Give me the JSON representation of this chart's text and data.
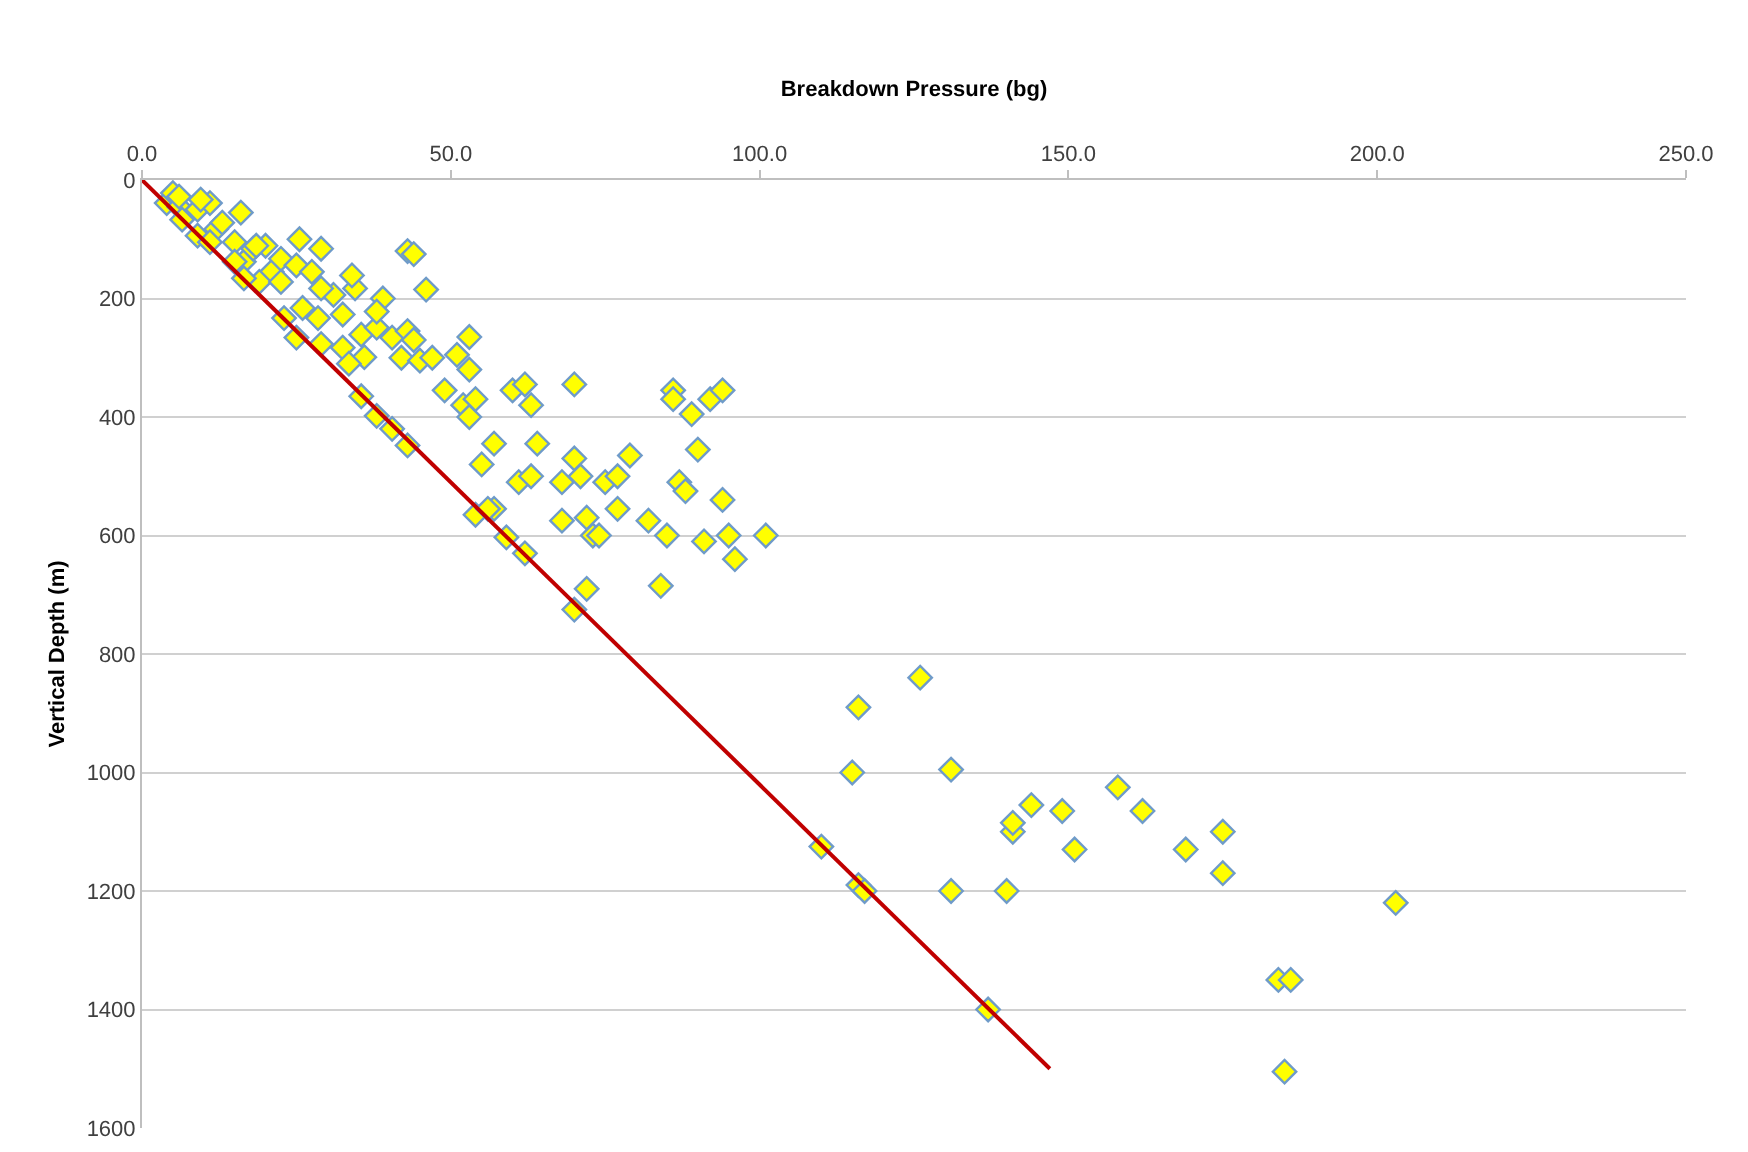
{
  "chart_data": {
    "type": "scatter",
    "xlabel": "Breakdown Pressure (bg)",
    "ylabel": "Vertical Depth (m)",
    "xlim": [
      0,
      250
    ],
    "xticks": [
      {
        "value": 0,
        "label": "0.0"
      },
      {
        "value": 50,
        "label": "50.0"
      },
      {
        "value": 100,
        "label": "100.0"
      },
      {
        "value": 150,
        "label": "150.0"
      },
      {
        "value": 200,
        "label": "200.0"
      },
      {
        "value": 250,
        "label": "250.0"
      }
    ],
    "ylim": [
      1600,
      0
    ],
    "yticks": [
      0,
      200,
      400,
      600,
      800,
      1000,
      1200,
      1400,
      1600
    ],
    "grid": "y",
    "series": [
      {
        "marker": "diamond",
        "color": "#ffff00",
        "x": [
          4,
          5,
          6,
          6.5,
          6,
          9,
          11,
          9,
          9.5,
          12,
          13,
          16,
          15,
          11,
          16.5,
          18,
          20,
          21,
          22.5,
          25,
          25.5,
          29,
          27.5,
          31,
          29,
          34.5,
          34,
          39,
          32.5,
          28.5,
          26,
          23,
          25,
          29,
          32.5,
          35.5,
          38,
          38,
          19,
          16.5,
          15,
          22.5,
          36,
          33.5,
          40.5,
          18.5,
          35.5,
          38,
          40.5,
          43,
          54,
          57,
          59,
          62,
          70,
          43,
          44,
          46,
          43,
          44,
          42,
          45,
          47,
          49,
          51,
          52,
          53,
          53,
          53,
          54,
          55,
          56,
          57,
          60,
          61,
          62,
          63,
          63,
          64,
          68,
          68,
          70,
          70,
          71,
          72,
          72,
          73,
          74,
          75,
          77,
          77,
          79,
          82,
          84,
          85,
          86,
          86,
          87,
          88,
          89,
          90,
          91,
          92,
          94,
          94,
          95,
          96,
          101,
          110,
          115,
          116,
          116,
          117,
          126,
          131,
          131,
          137,
          140,
          141,
          141,
          144,
          149,
          151,
          158,
          162,
          169,
          175,
          175,
          184,
          186,
          185,
          203
        ],
        "values": [
          39,
          22,
          45,
          67,
          28,
          50,
          39,
          94,
          33,
          83,
          72,
          55,
          105,
          105,
          138,
          116,
          111,
          155,
          133,
          144,
          100,
          116,
          155,
          194,
          183,
          183,
          161,
          200,
          227,
          233,
          216,
          233,
          266,
          277,
          283,
          261,
          249,
          222,
          172,
          166,
          138,
          172,
          299,
          310,
          266,
          111,
          365,
          398,
          420,
          448,
          565,
          555,
          603,
          630,
          725,
          120,
          125,
          185,
          255,
          270,
          300,
          305,
          300,
          355,
          295,
          380,
          265,
          320,
          400,
          370,
          480,
          555,
          445,
          355,
          510,
          345,
          380,
          500,
          445,
          510,
          575,
          345,
          470,
          500,
          690,
          570,
          600,
          600,
          510,
          500,
          555,
          465,
          575,
          685,
          600,
          355,
          370,
          510,
          525,
          395,
          455,
          610,
          370,
          355,
          540,
          600,
          640,
          600,
          1125,
          1000,
          890,
          1190,
          1200,
          840,
          995,
          1200,
          1400,
          1200,
          1100,
          1085,
          1055,
          1065,
          1130,
          1025,
          1065,
          1130,
          1100,
          1170,
          1350,
          1350,
          1505,
          1220
        ]
      },
      {
        "type": "line",
        "color": "#c00000",
        "x": [
          0,
          147
        ],
        "values": [
          0,
          1500
        ]
      }
    ]
  }
}
